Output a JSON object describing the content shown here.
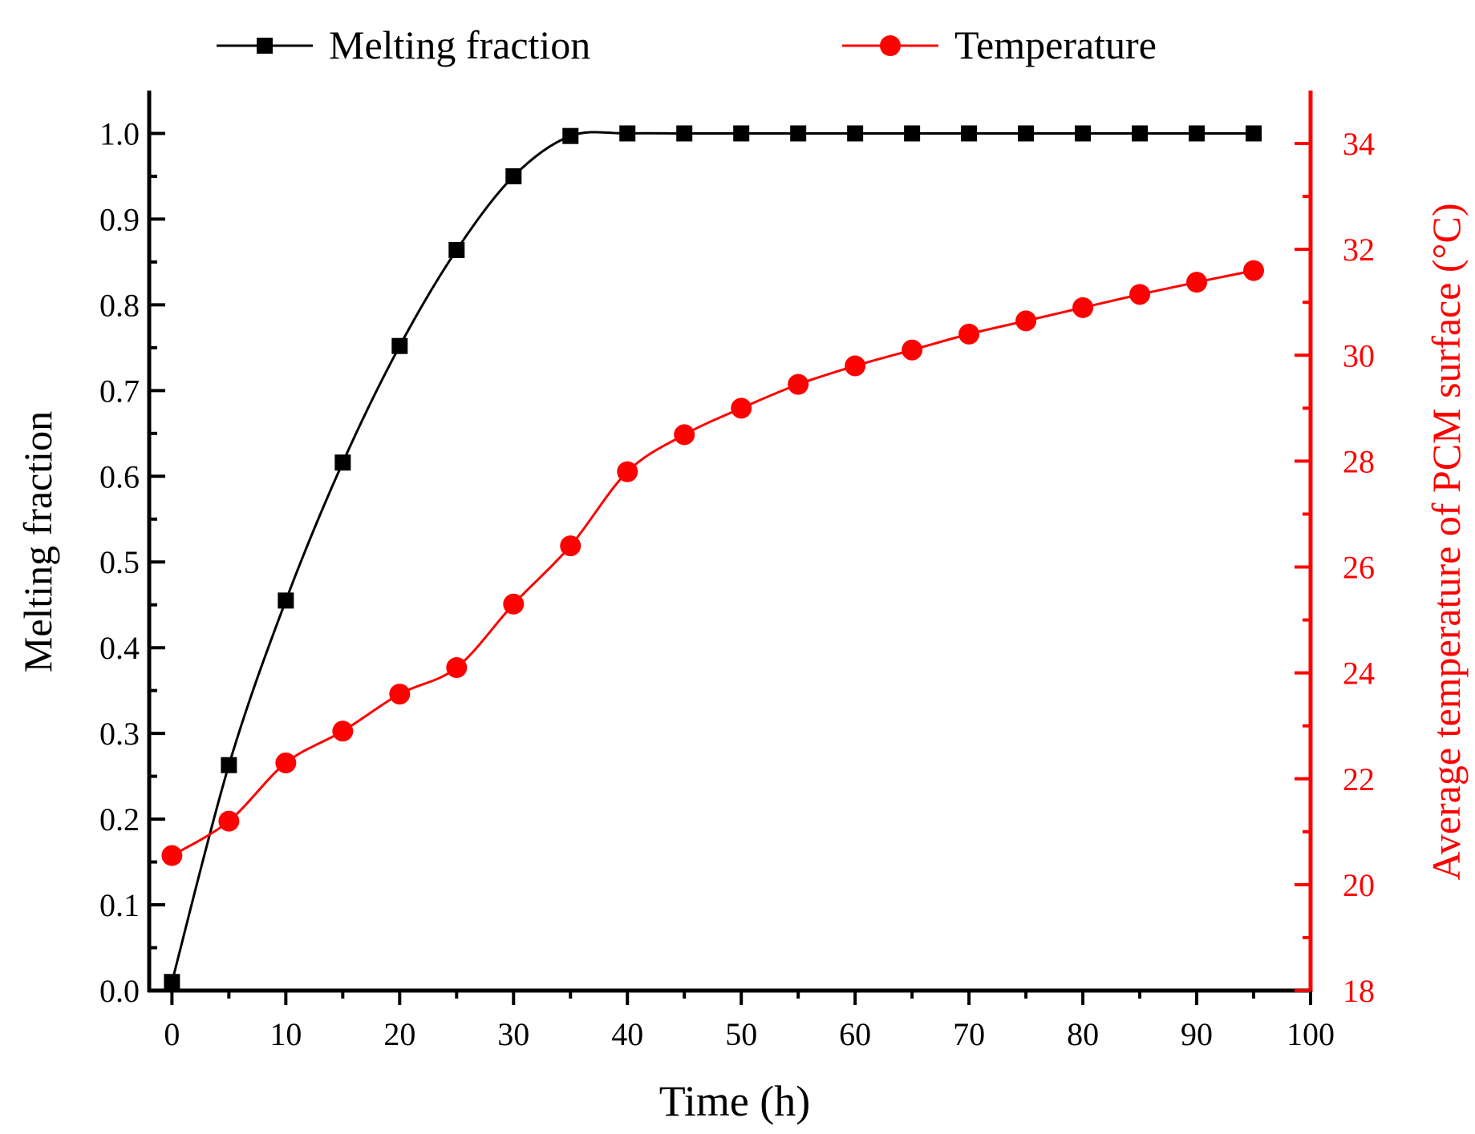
{
  "colors": {
    "series1": "#000000",
    "series2": "#ff0000",
    "axis_left": "#000000",
    "axis_right": "#ff0000"
  },
  "chart_data": {
    "type": "line",
    "xlabel": "Time (h)",
    "ylabel": "Melting fraction",
    "y2label": "Average temperature of  PCM surface (°C)",
    "xlim": [
      -2,
      100
    ],
    "ylim": [
      0,
      1.05
    ],
    "y2lim": [
      18,
      35
    ],
    "x_ticks": [
      0,
      10,
      20,
      30,
      40,
      50,
      60,
      70,
      80,
      90,
      100
    ],
    "x_tick_labels": [
      "0",
      "10",
      "20",
      "30",
      "40",
      "50",
      "60",
      "70",
      "80",
      "90",
      "100"
    ],
    "y_ticks": [
      0,
      0.1,
      0.2,
      0.3,
      0.4,
      0.5,
      0.6,
      0.7,
      0.8,
      0.9,
      1.0
    ],
    "y_tick_labels": [
      "0.0",
      "0.1",
      "0.2",
      "0.3",
      "0.4",
      "0.5",
      "0.6",
      "0.7",
      "0.8",
      "0.9",
      "1.0"
    ],
    "y2_ticks": [
      18,
      20,
      22,
      24,
      26,
      28,
      30,
      32,
      34
    ],
    "y2_tick_labels": [
      "18",
      "20",
      "22",
      "24",
      "26",
      "28",
      "30",
      "32",
      "34"
    ],
    "legend_position": "top",
    "series": [
      {
        "name": "Melting fraction",
        "axis": "left",
        "marker": "square",
        "x": [
          0,
          5,
          10,
          15,
          20,
          25,
          30,
          35,
          40,
          45,
          50,
          55,
          60,
          65,
          70,
          75,
          80,
          85,
          90,
          95
        ],
        "values": [
          0.01,
          0.263,
          0.455,
          0.616,
          0.752,
          0.864,
          0.95,
          0.997,
          1.0,
          1.0,
          1.0,
          1.0,
          1.0,
          1.0,
          1.0,
          1.0,
          1.0,
          1.0,
          1.0,
          1.0
        ]
      },
      {
        "name": "Temperature",
        "axis": "right",
        "marker": "circle",
        "x": [
          0,
          5,
          10,
          15,
          20,
          25,
          30,
          35,
          40,
          45,
          50,
          55,
          60,
          65,
          70,
          75,
          80,
          85,
          90,
          95
        ],
        "values": [
          20.55,
          21.2,
          22.3,
          22.9,
          23.6,
          24.1,
          25.3,
          26.4,
          27.8,
          28.5,
          29.0,
          29.45,
          29.8,
          30.1,
          30.4,
          30.65,
          30.9,
          31.15,
          31.38,
          31.6
        ]
      }
    ]
  }
}
